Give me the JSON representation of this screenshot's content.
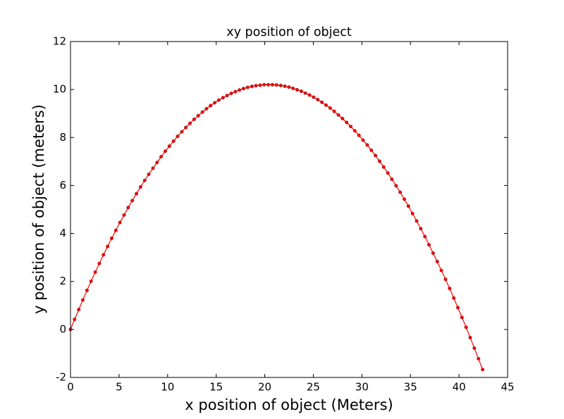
{
  "chart_data": {
    "type": "line",
    "title": "xy position of object",
    "x_label": "x position of object (Meters)",
    "y_label": "y position of object (meters)",
    "xlim": [
      0,
      45
    ],
    "ylim": [
      -2,
      12
    ],
    "xticks": [
      0,
      5,
      10,
      15,
      20,
      25,
      30,
      35,
      40,
      45
    ],
    "yticks": [
      -2,
      0,
      2,
      4,
      6,
      8,
      10,
      12
    ],
    "grid": false,
    "markers": true,
    "series": [
      {
        "color": "#ff0000",
        "x": [
          0,
          0.42,
          0.85,
          1.27,
          1.7,
          2.12,
          2.55,
          2.97,
          3.39,
          3.82,
          4.24,
          4.67,
          5.09,
          5.52,
          5.94,
          6.36,
          6.79,
          7.21,
          7.64,
          8.06,
          8.49,
          8.91,
          9.33,
          9.76,
          10.18,
          10.61,
          11.03,
          11.46,
          11.88,
          12.3,
          12.73,
          13.15,
          13.58,
          14.0,
          14.42,
          14.85,
          15.27,
          15.7,
          16.12,
          16.55,
          16.97,
          17.39,
          17.82,
          18.24,
          18.67,
          19.09,
          19.52,
          19.94,
          20.36,
          20.79,
          21.21,
          21.64,
          22.06,
          22.49,
          22.91,
          23.33,
          23.76,
          24.18,
          24.61,
          25.03,
          25.46,
          25.88,
          26.3,
          26.73,
          27.15,
          27.58,
          28.0,
          28.43,
          28.85,
          29.27,
          29.7,
          30.12,
          30.55,
          30.97,
          31.4,
          31.82,
          32.24,
          32.67,
          33.09,
          33.52,
          33.94,
          34.37,
          34.79,
          35.21,
          35.64,
          36.06,
          36.49,
          36.91,
          37.33,
          37.76,
          38.18,
          38.61,
          39.03,
          39.46,
          39.88,
          40.3,
          40.73,
          41.15,
          41.58,
          42.0,
          42.43
        ],
        "values": [
          0,
          0.42,
          0.83,
          1.23,
          1.63,
          2.01,
          2.39,
          2.75,
          3.11,
          3.46,
          3.8,
          4.13,
          4.46,
          4.77,
          5.08,
          5.37,
          5.66,
          5.94,
          6.21,
          6.47,
          6.72,
          6.96,
          7.2,
          7.43,
          7.64,
          7.85,
          8.05,
          8.24,
          8.42,
          8.59,
          8.76,
          8.91,
          9.06,
          9.2,
          9.33,
          9.45,
          9.56,
          9.66,
          9.75,
          9.84,
          9.91,
          9.98,
          10.04,
          10.09,
          10.13,
          10.16,
          10.18,
          10.2,
          10.2,
          10.2,
          10.19,
          10.17,
          10.14,
          10.1,
          10.05,
          9.99,
          9.93,
          9.85,
          9.77,
          9.68,
          9.58,
          9.47,
          9.35,
          9.23,
          9.09,
          8.94,
          8.79,
          8.63,
          8.46,
          8.28,
          8.09,
          7.89,
          7.69,
          7.47,
          7.25,
          7.01,
          6.77,
          6.52,
          6.26,
          5.99,
          5.72,
          5.43,
          5.14,
          4.83,
          4.52,
          4.2,
          3.87,
          3.53,
          3.18,
          2.83,
          2.46,
          2.09,
          1.71,
          1.31,
          0.91,
          0.5,
          0.09,
          -0.34,
          -0.78,
          -1.22,
          -1.67
        ]
      }
    ]
  }
}
